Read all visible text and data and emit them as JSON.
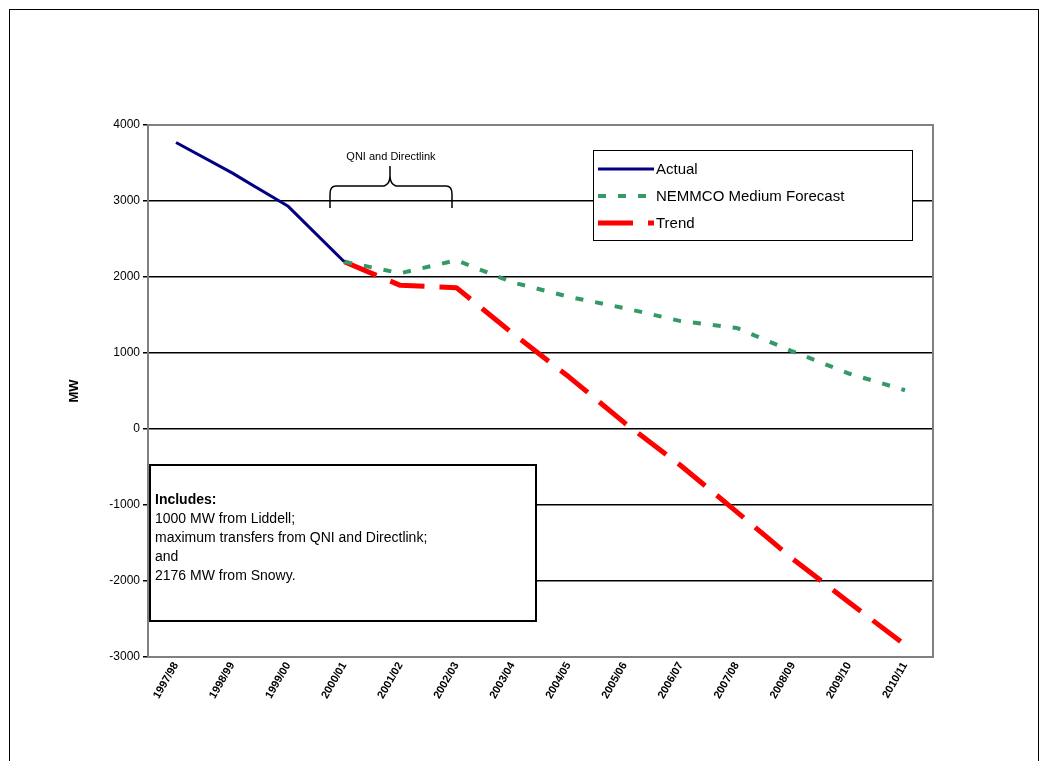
{
  "chart_data": {
    "type": "line",
    "ylabel": "MW",
    "categories": [
      "1997/98",
      "1998/99",
      "1999/00",
      "2000/01",
      "2001/02",
      "2002/03",
      "2003/04",
      "2004/05",
      "2005/06",
      "2006/07",
      "2007/08",
      "2008/09",
      "2009/10",
      "2010/11"
    ],
    "series": [
      {
        "name": "Actual",
        "color": "#000080",
        "line_style": "solid",
        "values": [
          3770,
          3370,
          2930,
          2200,
          null,
          null,
          null,
          null,
          null,
          null,
          null,
          null,
          null,
          null
        ]
      },
      {
        "name": "NEMMCO Medium Forecast",
        "color": "#339966",
        "line_style": "dotted",
        "values": [
          null,
          null,
          null,
          2200,
          2050,
          2220,
          1930,
          1740,
          1590,
          1420,
          1330,
          1020,
          730,
          510
        ]
      },
      {
        "name": "Trend",
        "color": "#ff0000",
        "line_style": "dashed",
        "values": [
          null,
          null,
          null,
          2200,
          1890,
          1860,
          1260,
          690,
          80,
          -480,
          -1090,
          -1710,
          -2280,
          -2840
        ]
      }
    ],
    "ylim": [
      -3000,
      4000
    ],
    "yticks": [
      -3000,
      -2000,
      -1000,
      0,
      1000,
      2000,
      3000,
      4000
    ],
    "grid": "y",
    "legend": "top right",
    "annotations": [
      "QNI and Directlink",
      "Includes:",
      "1000 MW from Liddell;",
      "maximum transfers from QNI and Directlink;",
      "and",
      "2176 MW from Snowy."
    ]
  }
}
